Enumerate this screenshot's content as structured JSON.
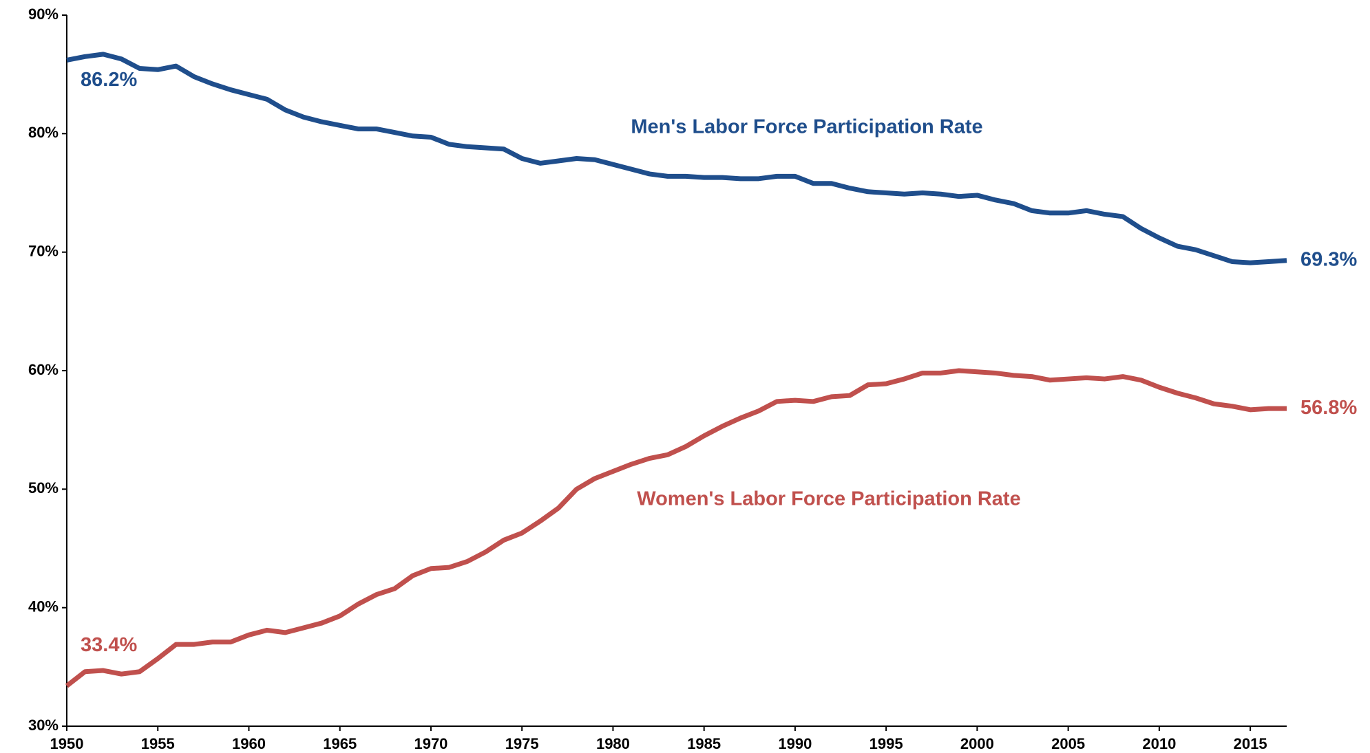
{
  "chart_data": {
    "type": "line",
    "x": [
      1950,
      1951,
      1952,
      1953,
      1954,
      1955,
      1956,
      1957,
      1958,
      1959,
      1960,
      1961,
      1962,
      1963,
      1964,
      1965,
      1966,
      1967,
      1968,
      1969,
      1970,
      1971,
      1972,
      1973,
      1974,
      1975,
      1976,
      1977,
      1978,
      1979,
      1980,
      1981,
      1982,
      1983,
      1984,
      1985,
      1986,
      1987,
      1988,
      1989,
      1990,
      1991,
      1992,
      1993,
      1994,
      1995,
      1996,
      1997,
      1998,
      1999,
      2000,
      2001,
      2002,
      2003,
      2004,
      2005,
      2006,
      2007,
      2008,
      2009,
      2010,
      2011,
      2012,
      2013,
      2014,
      2015,
      2016,
      2017
    ],
    "series": [
      {
        "name": "Men's Labor Force Participation Rate",
        "color": "#1f4e8c",
        "values": [
          86.2,
          86.5,
          86.7,
          86.3,
          85.5,
          85.4,
          85.7,
          84.8,
          84.2,
          83.7,
          83.3,
          82.9,
          82.0,
          81.4,
          81.0,
          80.7,
          80.4,
          80.4,
          80.1,
          79.8,
          79.7,
          79.1,
          78.9,
          78.8,
          78.7,
          77.9,
          77.5,
          77.7,
          77.9,
          77.8,
          77.4,
          77.0,
          76.6,
          76.4,
          76.4,
          76.3,
          76.3,
          76.2,
          76.2,
          76.4,
          76.4,
          75.8,
          75.8,
          75.4,
          75.1,
          75.0,
          74.9,
          75.0,
          74.9,
          74.7,
          74.8,
          74.4,
          74.1,
          73.5,
          73.3,
          73.3,
          73.5,
          73.2,
          73.0,
          72.0,
          71.2,
          70.5,
          70.2,
          69.7,
          69.2,
          69.1,
          69.2,
          69.3
        ],
        "value_labels": [
          "86.2%",
          null,
          null,
          null,
          null,
          null,
          null,
          null,
          null,
          null,
          null,
          null,
          null,
          null,
          null,
          null,
          null,
          null,
          null,
          null,
          null,
          null,
          null,
          null,
          null,
          null,
          null,
          null,
          null,
          null,
          null,
          null,
          null,
          null,
          null,
          null,
          null,
          null,
          null,
          null,
          null,
          null,
          null,
          null,
          null,
          null,
          null,
          null,
          null,
          null,
          null,
          null,
          null,
          null,
          null,
          null,
          null,
          null,
          null,
          null,
          null,
          null,
          null,
          null,
          null,
          null,
          null,
          "69.3%"
        ]
      },
      {
        "name": "Women's Labor Force Participation Rate",
        "color": "#c0504d",
        "values": [
          33.4,
          34.6,
          34.7,
          34.4,
          34.6,
          35.7,
          36.9,
          36.9,
          37.1,
          37.1,
          37.7,
          38.1,
          37.9,
          38.3,
          38.7,
          39.3,
          40.3,
          41.1,
          41.6,
          42.7,
          43.3,
          43.4,
          43.9,
          44.7,
          45.7,
          46.3,
          47.3,
          48.4,
          50.0,
          50.9,
          51.5,
          52.1,
          52.6,
          52.9,
          53.6,
          54.5,
          55.3,
          56.0,
          56.6,
          57.4,
          57.5,
          57.4,
          57.8,
          57.9,
          58.8,
          58.9,
          59.3,
          59.8,
          59.8,
          60.0,
          59.9,
          59.8,
          59.6,
          59.5,
          59.2,
          59.3,
          59.4,
          59.3,
          59.5,
          59.2,
          58.6,
          58.1,
          57.7,
          57.2,
          57.0,
          56.7,
          56.8,
          56.8
        ],
        "value_labels": [
          "33.4%",
          null,
          null,
          null,
          null,
          null,
          null,
          null,
          null,
          null,
          null,
          null,
          null,
          null,
          null,
          null,
          null,
          null,
          null,
          null,
          null,
          null,
          null,
          null,
          null,
          null,
          null,
          null,
          null,
          null,
          null,
          null,
          null,
          null,
          null,
          null,
          null,
          null,
          null,
          null,
          null,
          null,
          null,
          null,
          null,
          null,
          null,
          null,
          null,
          null,
          null,
          null,
          null,
          null,
          null,
          null,
          null,
          null,
          null,
          null,
          null,
          null,
          null,
          null,
          null,
          null,
          null,
          "56.8%"
        ]
      }
    ],
    "xlim": [
      1950,
      2017
    ],
    "xticks": [
      1950,
      1955,
      1960,
      1965,
      1970,
      1975,
      1980,
      1985,
      1990,
      1995,
      2000,
      2005,
      2010,
      2015
    ],
    "ylim": [
      30,
      90
    ],
    "yticks": [
      {
        "value": 30,
        "label": "30%"
      },
      {
        "value": 40,
        "label": "40%"
      },
      {
        "value": 50,
        "label": "50%"
      },
      {
        "value": 60,
        "label": "60%"
      },
      {
        "value": 70,
        "label": "70%"
      },
      {
        "value": 80,
        "label": "80%"
      },
      {
        "value": 90,
        "label": "90%"
      }
    ],
    "grid": false
  }
}
